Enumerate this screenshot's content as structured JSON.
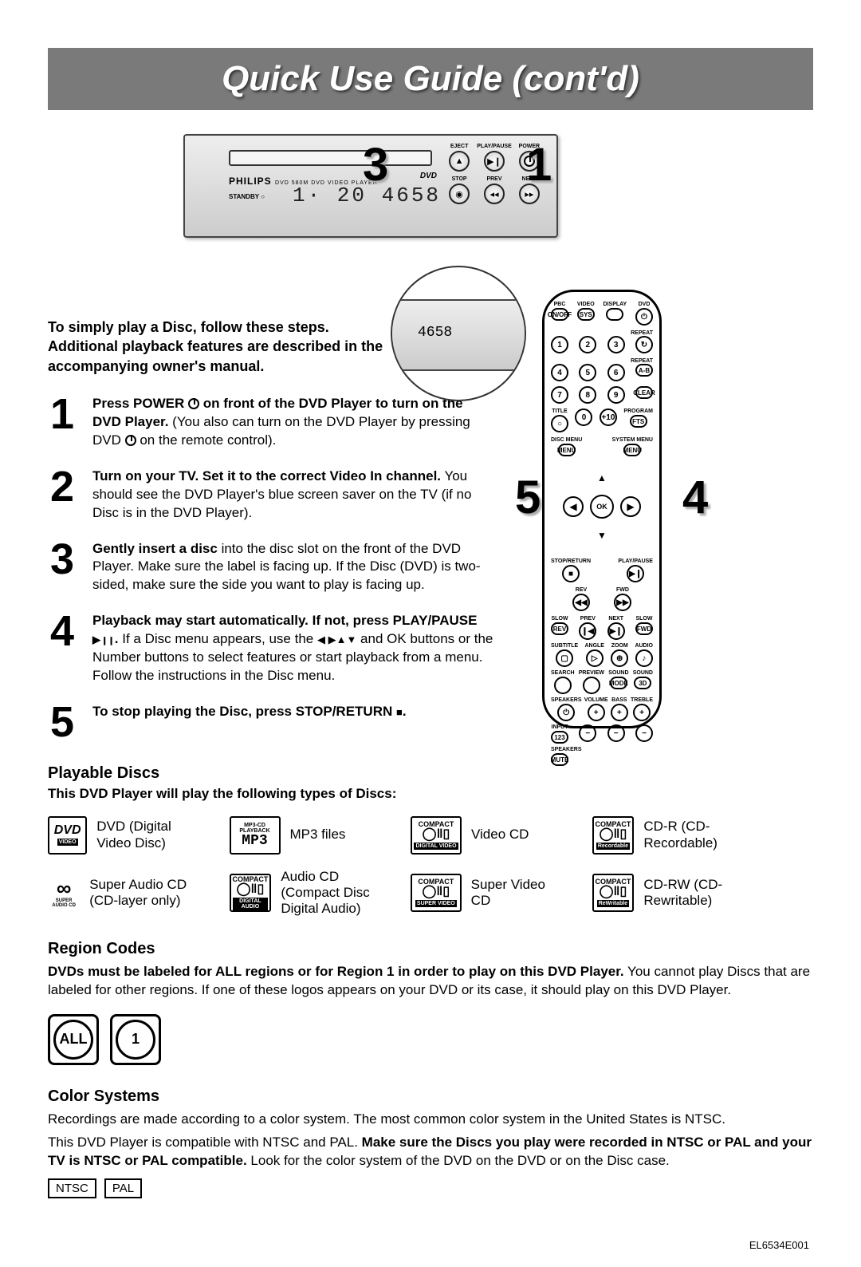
{
  "title": "Quick Use Guide (cont'd)",
  "player": {
    "brand": "PHILIPS",
    "model": "DVD 580M DVD VIDEO PLAYER",
    "standby": "STANDBY ○",
    "display": "1· 20  4658",
    "dvd_badge": "DVD",
    "buttons": {
      "eject": "EJECT",
      "playpause": "PLAY/PAUSE",
      "power": "POWER",
      "stop": "STOP",
      "prev": "PREV",
      "next": "NEXT"
    }
  },
  "callouts": {
    "c1": "1",
    "c3": "3",
    "c4": "4",
    "c5": "5"
  },
  "intro": "To simply play a Disc, follow these steps. Additional playback features are described in the accompanying owner's manual.",
  "steps": [
    {
      "n": "1",
      "bold": "Press POWER ",
      "bold2": " on front of the DVD Player to turn on the DVD Player.",
      "rest": " (You also can turn on the DVD Player by pressing DVD ",
      "rest2": " on the remote control).",
      "hasPower": true
    },
    {
      "n": "2",
      "bold": "Turn on your TV. Set it to the correct Video In channel.",
      "rest": " You should see the DVD Player's blue screen saver on the TV (if no Disc is in the DVD Player)."
    },
    {
      "n": "3",
      "bold": "Gently insert a disc",
      "rest": " into the disc slot on the front of the DVD Player. Make sure the label is facing up. If the Disc (DVD) is two-sided, make sure the side you want to play is facing up."
    },
    {
      "n": "4",
      "bold": "Playback may start automatically. If not, press PLAY/PAUSE ",
      "bold2": ".",
      "rest": " If a Disc menu appears, use the ",
      "rest2": " and OK buttons or the Number buttons to select features or start playback from a menu. Follow the instructions in the Disc menu.",
      "hasPlayPause": true
    },
    {
      "n": "5",
      "bold": "To stop playing the Disc, press STOP/RETURN ",
      "bold2": ".",
      "hasStop": true
    }
  ],
  "playable": {
    "heading": "Playable Discs",
    "sub": "This DVD Player will play the following types of Discs:",
    "items": [
      {
        "logo": "DVD",
        "sub": "VIDEO",
        "text": "DVD (Digital Video Disc)"
      },
      {
        "logo": "MP3",
        "sub": "MP3-CD PLAYBACK",
        "text": "MP3 files"
      },
      {
        "logo": "disc",
        "sub": "DIGITAL VIDEO",
        "top": "COMPACT",
        "text": "Video CD"
      },
      {
        "logo": "disc",
        "sub": "Recordable",
        "top": "COMPACT",
        "text": "CD-R (CD-Recordable)"
      },
      {
        "logo": "∞",
        "sub": "SUPER AUDIO CD",
        "text": "Super Audio CD (CD-layer only)"
      },
      {
        "logo": "disc",
        "sub": "DIGITAL AUDIO",
        "top": "COMPACT",
        "text": "Audio CD (Compact Disc Digital Audio)"
      },
      {
        "logo": "disc",
        "sub": "SUPER VIDEO",
        "top": "COMPACT",
        "text": "Super Video CD"
      },
      {
        "logo": "disc",
        "sub": "ReWritable",
        "top": "COMPACT",
        "text": "CD-RW (CD-Rewritable)"
      }
    ]
  },
  "region": {
    "heading": "Region Codes",
    "body_bold": "DVDs must be labeled for ALL regions or for Region 1 in order to play on this DVD Player.",
    "body_rest": " You cannot play Discs that are labeled for other regions. If one of these logos appears on your DVD or its case, it should play on this DVD Player.",
    "g1": "ALL",
    "g2": "1"
  },
  "color": {
    "heading": "Color Systems",
    "line1": "Recordings are made according to a color system. The most common color system in the United States is NTSC.",
    "line2a": "This DVD Player is compatible with NTSC and PAL. ",
    "line2b": "Make sure the Discs you play were recorded in NTSC or PAL and your TV is NTSC or PAL compatible.",
    "line2c": " Look for the color system of the DVD on the DVD or on the Disc case.",
    "b1": "NTSC",
    "b2": "PAL"
  },
  "footer": "EL6534E001",
  "remote": {
    "row1": [
      "PBC",
      "VIDEO",
      "DISPLAY",
      "DVD"
    ],
    "row1b": [
      "ON/OFF",
      "SYS",
      "",
      ""
    ],
    "row_repeat": "REPEAT",
    "nums": [
      "1",
      "2",
      "3",
      "4",
      "5",
      "6",
      "7",
      "8",
      "9",
      "0",
      "+10"
    ],
    "ab": "A-B",
    "clear": "CLEAR",
    "title": "TITLE",
    "fts": "FTS",
    "program": "PROGRAM",
    "disc_menu": "DISC MENU",
    "sys_menu": "SYSTEM MENU",
    "ok": "OK",
    "stop_return": "STOP/RETURN",
    "play_pause": "PLAY/PAUSE",
    "rev": "REV",
    "fwd": "FWD",
    "slow": "SLOW",
    "prev": "PREV",
    "next": "NEXT",
    "subtitle": "SUBTITLE",
    "angle": "ANGLE",
    "zoom": "ZOOM",
    "audio": "AUDIO",
    "search": "SEARCH",
    "preview": "PREVIEW",
    "sound": "SOUND",
    "mode": "MODE",
    "threeD": "3D",
    "speakers": "SPEAKERS",
    "volume": "VOLUME",
    "bass": "BASS",
    "treble": "TREBLE",
    "input": "INPUT",
    "n123": "123",
    "mute": "MUTE",
    "speakers2": "SPEAKERS"
  }
}
